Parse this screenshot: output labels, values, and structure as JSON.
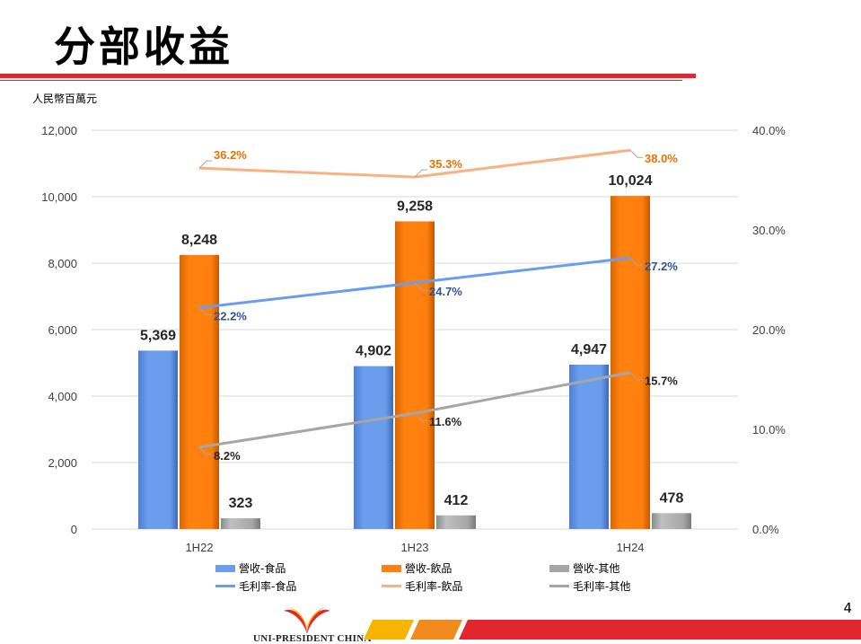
{
  "slide": {
    "title": "分部收益",
    "unit_label": "人民幣百萬元",
    "page_number": "4",
    "brand": "UNI-PRESIDENT CHINA"
  },
  "colors": {
    "accent_red": "#e3262e",
    "food": "#6a9dee",
    "beverage": "#ff7f0e",
    "other": "#a6a6a6",
    "margin_beverage": "#f8b182",
    "margin_food_label": "#2f5597",
    "margin_bev_label": "#e87200"
  },
  "chart_data": {
    "type": "bar",
    "categories": [
      "1H22",
      "1H23",
      "1H24"
    ],
    "y_left": {
      "ticks": [
        "0",
        "2,000",
        "4,000",
        "6,000",
        "8,000",
        "10,000",
        "12,000"
      ],
      "ylim": [
        0,
        12000
      ]
    },
    "y_right": {
      "ticks": [
        "0.0%",
        "10.0%",
        "20.0%",
        "30.0%",
        "40.0%"
      ],
      "ylim": [
        0,
        40
      ]
    },
    "grid": true,
    "legend_position": "bottom",
    "bar_series": [
      {
        "name": "營收-食品",
        "values": [
          5369,
          4902,
          4947
        ],
        "labels": [
          "5,369",
          "4,902",
          "4,947"
        ]
      },
      {
        "name": "營收-飲品",
        "values": [
          8248,
          9258,
          10024
        ],
        "labels": [
          "8,248",
          "9,258",
          "10,024"
        ]
      },
      {
        "name": "營收-其他",
        "values": [
          323,
          412,
          478
        ],
        "labels": [
          "323",
          "412",
          "478"
        ]
      }
    ],
    "line_series": [
      {
        "name": "毛利率-食品",
        "values": [
          22.2,
          24.7,
          27.2
        ],
        "labels": [
          "22.2%",
          "24.7%",
          "27.2%"
        ]
      },
      {
        "name": "毛利率-飲品",
        "values": [
          36.2,
          35.3,
          38.0
        ],
        "labels": [
          "36.2%",
          "35.3%",
          "38.0%"
        ]
      },
      {
        "name": "毛利率-其他",
        "values": [
          8.2,
          11.6,
          15.7
        ],
        "labels": [
          "8.2%",
          "11.6%",
          "15.7%"
        ]
      }
    ]
  }
}
